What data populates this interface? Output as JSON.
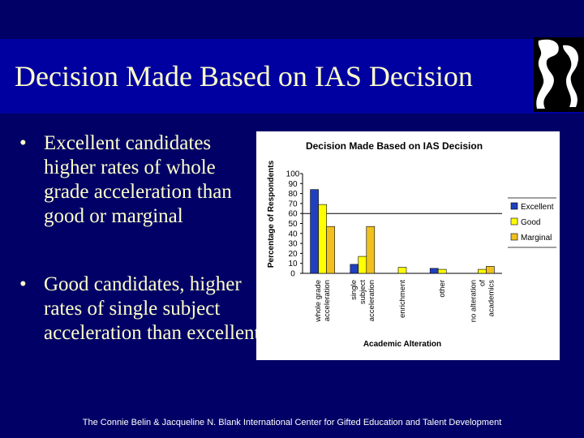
{
  "slide": {
    "title": "Decision Made Based on IAS Decision",
    "bullets": [
      {
        "bullet_char": "•",
        "text": "Excellent candidates higher rates of whole grade acceleration than good or marginal"
      },
      {
        "bullet_char": "•",
        "text": "Good candidates, higher rates of single subject acceleration than excellent"
      }
    ],
    "footer": "The Connie Belin & Jacqueline N. Blank International Center for Gifted Education and Talent Development"
  },
  "colors": {
    "background": "#000066",
    "title_band": "#0000a0",
    "title_text": "#ffffcc",
    "excellent": "#2040c0",
    "good": "#ffff00",
    "marginal": "#f0c020"
  },
  "chart_data": {
    "type": "bar",
    "title": "Decision Made Based on IAS Decision",
    "xlabel": "Academic Alteration",
    "ylabel": "Percentage of Respondents",
    "ylim": [
      0,
      100
    ],
    "yticks": [
      100,
      90,
      80,
      70,
      60,
      50,
      40,
      30,
      20,
      10,
      0
    ],
    "categories": [
      [
        "whole grade",
        "acceleration"
      ],
      [
        "single",
        "subject",
        "acceleration"
      ],
      [
        "enrichment"
      ],
      [
        "other"
      ],
      [
        "no alteration",
        "of",
        "academics"
      ]
    ],
    "series": [
      {
        "name": "Excellent",
        "color": "#2040c0",
        "values": [
          84,
          9,
          0,
          5,
          0
        ]
      },
      {
        "name": "Good",
        "color": "#ffff00",
        "values": [
          69,
          17,
          6,
          4,
          4
        ]
      },
      {
        "name": "Marginal",
        "color": "#f0c020",
        "values": [
          47,
          47,
          0,
          0,
          7
        ]
      }
    ],
    "reference_line": 60,
    "legend_position": "right"
  }
}
